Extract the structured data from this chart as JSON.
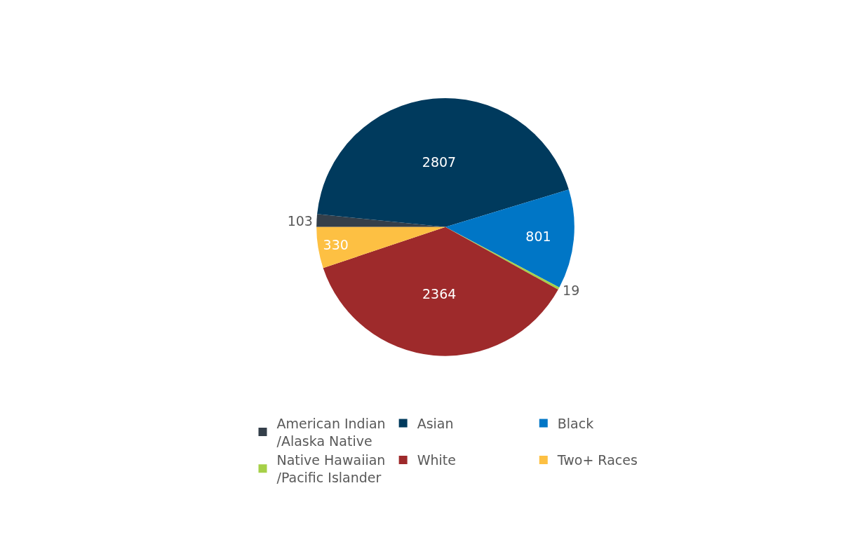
{
  "chart_data": {
    "type": "pie",
    "categories": [
      "American Indian /Alaska Native",
      "Asian",
      "Black",
      "Native Hawaiian /Pacific Islander",
      "White",
      "Two+ Races"
    ],
    "values": [
      103,
      2807,
      801,
      19,
      2364,
      330
    ],
    "colors": [
      "#343f4a",
      "#003a5d",
      "#0076c6",
      "#a6d048",
      "#9e2a2b",
      "#fdc043"
    ],
    "data_labels": true,
    "legend": "bottom"
  }
}
